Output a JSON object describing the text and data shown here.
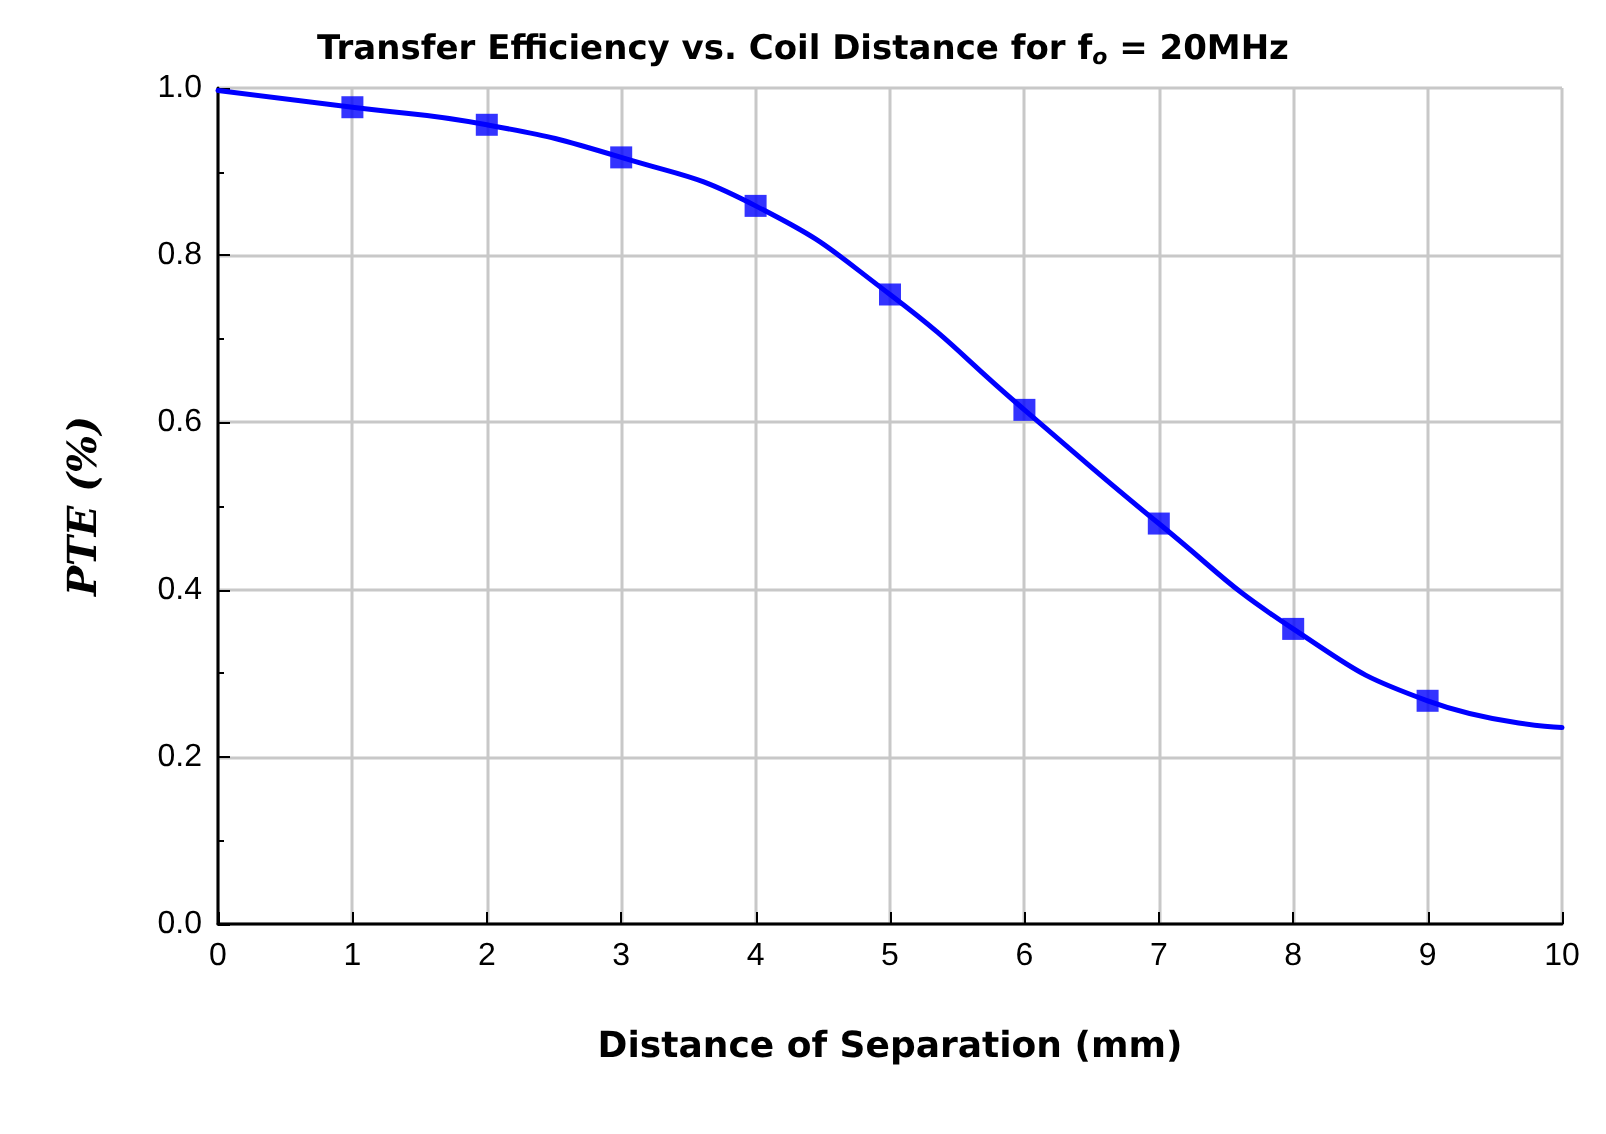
{
  "chart_data": {
    "type": "line",
    "title": "Transfer Efficiency vs. Coil Distance for f$_{o}$ = 20MHz",
    "xlabel": "Distance of Separation (mm)",
    "ylabel": "PTE (%)",
    "series": [
      {
        "color": "#0000ff",
        "marker": "none",
        "x": [
          0,
          1,
          2,
          3,
          4,
          5,
          6,
          7,
          8,
          9,
          10
        ],
        "values": [
          0.997,
          0.977,
          0.956,
          0.917,
          0.859,
          0.753,
          0.615,
          0.479,
          0.353,
          0.267,
          0.235
        ]
      },
      {
        "type": "scatter",
        "color": "#0000ff",
        "marker": "square",
        "x": [
          1,
          2,
          3,
          4,
          5,
          6,
          7,
          8,
          9
        ],
        "values": [
          0.977,
          0.956,
          0.917,
          0.859,
          0.753,
          0.615,
          0.479,
          0.353,
          0.267
        ]
      }
    ],
    "xlim": [
      0,
      10
    ],
    "xticks": [
      0,
      1,
      2,
      3,
      4,
      5,
      6,
      7,
      8,
      9,
      10
    ],
    "ylim": [
      0,
      1
    ],
    "yticks": [
      {
        "value": 0,
        "label": "0.0"
      },
      {
        "value": 0.2,
        "label": "0.2"
      },
      {
        "value": 0.4,
        "label": "0.4"
      },
      {
        "value": 0.6,
        "label": "0.6"
      },
      {
        "value": 0.8,
        "label": "0.8"
      },
      {
        "value": 1,
        "label": "1.0"
      }
    ],
    "grid": true
  }
}
